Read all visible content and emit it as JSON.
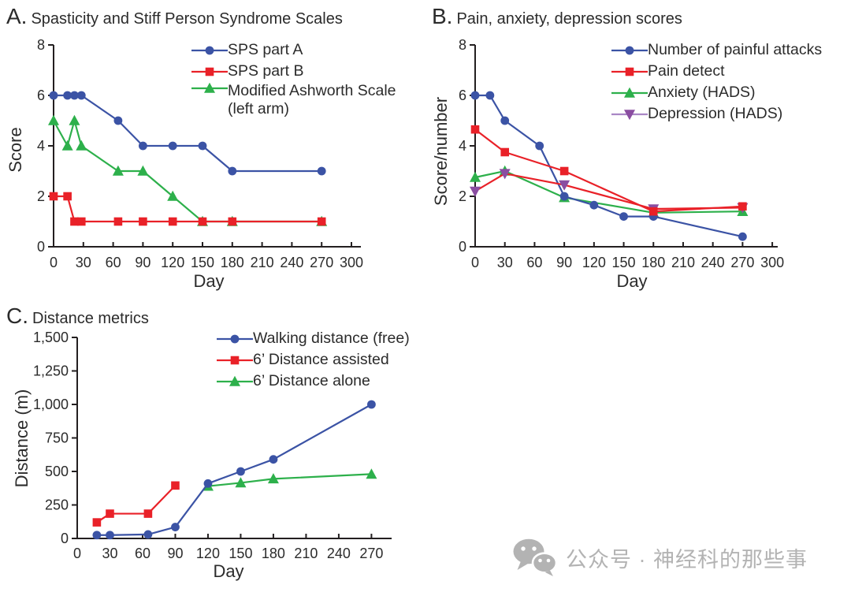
{
  "figure": {
    "background": "#ffffff",
    "axis_color": "#231f20",
    "text_color": "#2b2b2b",
    "palette": {
      "blue": "#3b53a5",
      "red": "#e92128",
      "green": "#2db04b",
      "purple": "#8a4da1",
      "purple_light": "#a987c5"
    }
  },
  "chart_data": [
    {
      "type": "line",
      "panel_label": "A.",
      "title": "Spasticity and Stiff Person Syndrome Scales",
      "xlabel": "Day",
      "ylabel": "Score",
      "xlim": [
        0,
        310
      ],
      "ylim": [
        0,
        8
      ],
      "xticks": [
        0,
        30,
        60,
        90,
        120,
        150,
        180,
        210,
        240,
        270,
        300
      ],
      "yticks": [
        0,
        2,
        4,
        6,
        8
      ],
      "grid": false,
      "legend_position": "top-right-inside",
      "draw_order": [
        2,
        1,
        0
      ],
      "series": [
        {
          "name": "sps-part-a",
          "label": "SPS part A",
          "color": "blue",
          "marker": "circle",
          "x": [
            0,
            14,
            21,
            28,
            65,
            90,
            120,
            150,
            180,
            270
          ],
          "y": [
            6,
            6,
            6,
            6,
            5,
            4,
            4,
            4,
            3,
            3
          ]
        },
        {
          "name": "sps-part-b",
          "label": "SPS part B",
          "color": "red",
          "marker": "square",
          "x": [
            0,
            14,
            21,
            28,
            65,
            90,
            120,
            150,
            180,
            270
          ],
          "y": [
            2,
            2,
            1,
            1,
            1,
            1,
            1,
            1,
            1,
            1
          ]
        },
        {
          "name": "modified-ashworth-scale",
          "label": "Modified Ashworth Scale\n(left arm)",
          "color": "green",
          "marker": "triangle-up",
          "x": [
            0,
            14,
            21,
            28,
            65,
            90,
            120,
            150,
            180,
            270
          ],
          "y": [
            5,
            4,
            5,
            4,
            3,
            3,
            2,
            1,
            1,
            1
          ]
        }
      ]
    },
    {
      "type": "line",
      "panel_label": "B.",
      "title": "Pain, anxiety, depression scores",
      "xlabel": "Day",
      "ylabel": "Score/number",
      "xlim": [
        0,
        310
      ],
      "ylim": [
        0,
        8
      ],
      "xticks": [
        0,
        30,
        60,
        90,
        120,
        150,
        180,
        210,
        240,
        270,
        300
      ],
      "yticks": [
        0,
        2,
        4,
        6,
        8
      ],
      "grid": false,
      "legend_position": "top-right-inside",
      "draw_order": [
        2,
        0,
        3,
        1
      ],
      "series": [
        {
          "name": "number-of-painful-attacks",
          "label": "Number of painful attacks",
          "color": "blue",
          "marker": "circle",
          "x": [
            0,
            15,
            30,
            65,
            90,
            120,
            150,
            180,
            270
          ],
          "y": [
            6,
            6,
            5,
            4,
            2,
            1.65,
            1.2,
            1.2,
            0.4
          ]
        },
        {
          "name": "pain-detect",
          "label": "Pain detect",
          "color": "red",
          "marker": "square",
          "x": [
            0,
            30,
            90,
            180,
            270
          ],
          "y": [
            4.65,
            3.75,
            3,
            1.4,
            1.6
          ]
        },
        {
          "name": "anxiety-hads",
          "label": "Anxiety (HADS)",
          "color": "green",
          "marker": "triangle-up",
          "x": [
            0,
            30,
            90,
            180,
            270
          ],
          "y": [
            2.75,
            3,
            1.95,
            1.35,
            1.4
          ]
        },
        {
          "name": "depression-hads",
          "label": "Depression (HADS)",
          "color": "purple",
          "line_color": "red",
          "legend_line_color": "purple_light",
          "marker": "triangle-down",
          "x": [
            0,
            30,
            90,
            180,
            270
          ],
          "y": [
            2.2,
            2.9,
            2.45,
            1.5,
            1.55
          ]
        }
      ]
    },
    {
      "type": "line",
      "panel_label": "C.",
      "title": "Distance metrics",
      "xlabel": "Day",
      "ylabel": "Distance (m)",
      "xlim": [
        0,
        290
      ],
      "ylim": [
        0,
        1500
      ],
      "xticks": [
        0,
        30,
        60,
        90,
        120,
        150,
        180,
        210,
        240,
        270
      ],
      "yticks": [
        0,
        250,
        500,
        750,
        1000,
        1250,
        1500
      ],
      "ytick_labels": [
        "0",
        "250",
        "500",
        "750",
        "1,000",
        "1,250",
        "1,500"
      ],
      "grid": false,
      "legend_position": "top-right-inside",
      "draw_order": [
        2,
        1,
        0
      ],
      "series": [
        {
          "name": "walking-distance-free",
          "label": "Walking distance (free)",
          "color": "blue",
          "marker": "circle",
          "x": [
            18,
            30,
            65,
            90,
            120,
            150,
            180,
            270
          ],
          "y": [
            25,
            25,
            30,
            85,
            410,
            500,
            590,
            1000
          ]
        },
        {
          "name": "6min-distance-assisted",
          "label": "6’ Distance assisted",
          "color": "red",
          "marker": "square",
          "x": [
            18,
            30,
            65,
            90
          ],
          "y": [
            120,
            185,
            185,
            395
          ]
        },
        {
          "name": "6min-distance-alone",
          "label": "6’ Distance alone",
          "color": "green",
          "marker": "triangle-up",
          "x": [
            120,
            150,
            180,
            270
          ],
          "y": [
            390,
            415,
            445,
            480
          ]
        }
      ]
    }
  ],
  "watermark": {
    "text": "公众号 · 神经科的那些事",
    "icon": "wechat-icon",
    "color": "#b3b3b3"
  }
}
